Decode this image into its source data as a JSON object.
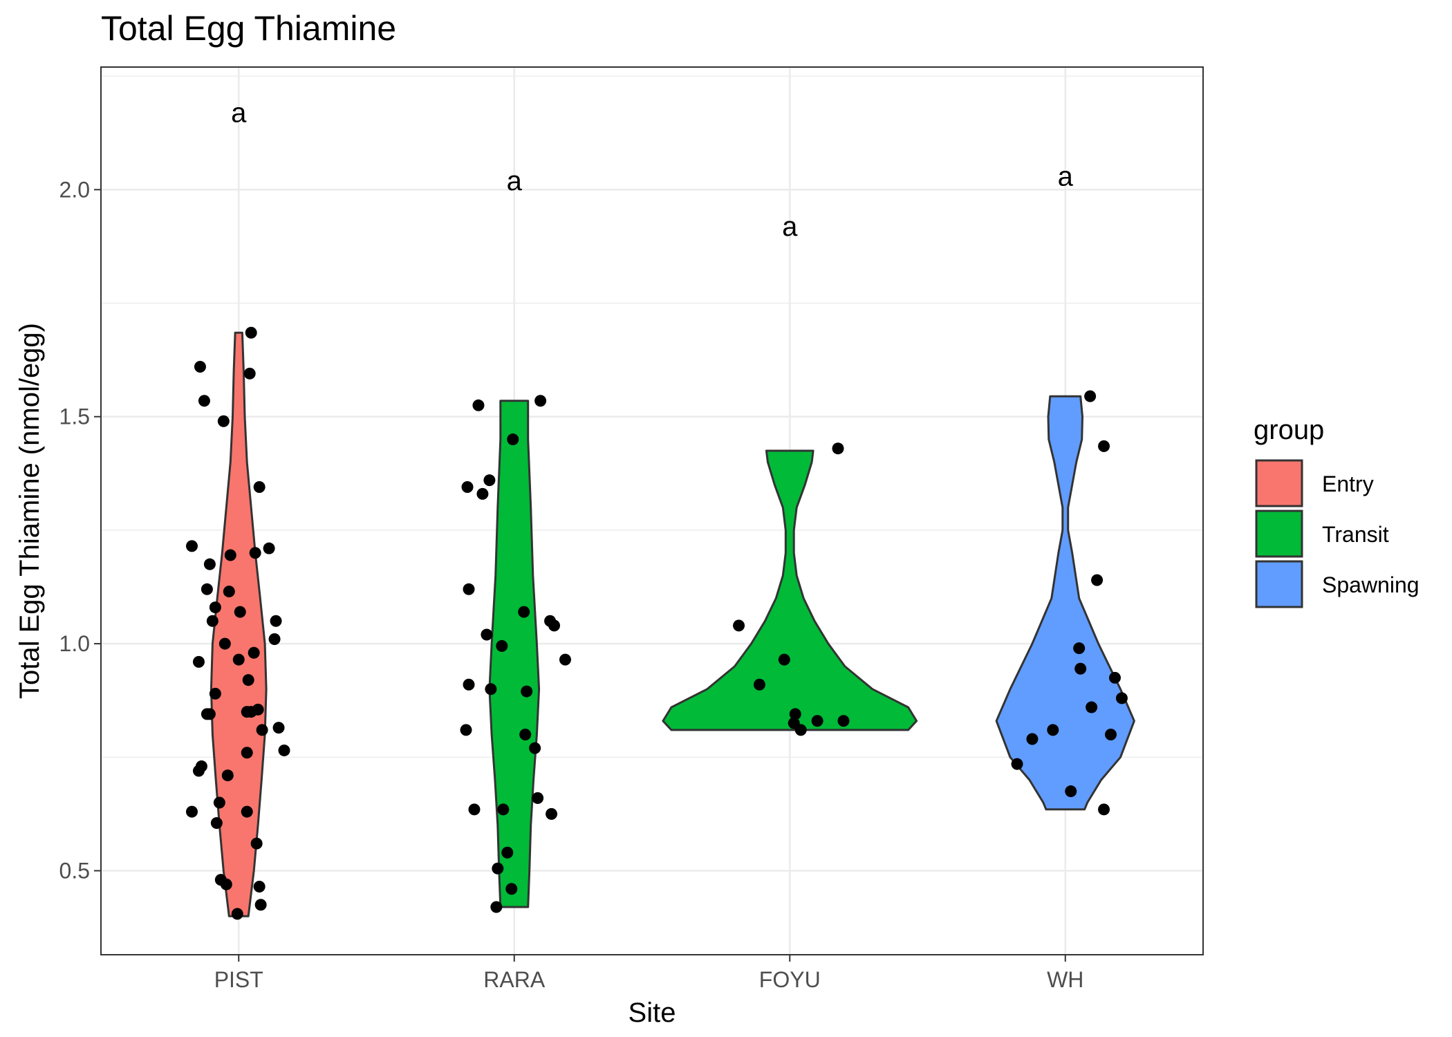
{
  "chart_data": {
    "type": "violin",
    "title": "Total Egg Thiamine",
    "xlabel": "Site",
    "ylabel": "Total Egg Thiamine (nmol/egg)",
    "ylim": [
      0.315,
      2.27
    ],
    "yticks": [
      "0.5",
      "1.0",
      "1.5",
      "2.0"
    ],
    "grid": true,
    "legend": {
      "title": "group",
      "position": "right",
      "entries": [
        {
          "label": "Entry",
          "color": "#F8766D"
        },
        {
          "label": "Transit",
          "color": "#00BA38"
        },
        {
          "label": "Spawning",
          "color": "#619CFF"
        }
      ]
    },
    "categories": [
      "PIST",
      "RARA",
      "FOYU",
      "WH"
    ],
    "sites": [
      {
        "name": "PIST",
        "group": "Entry",
        "letter": "a",
        "letter_y": 2.17,
        "violin": [
          [
            1.685,
            0.013
          ],
          [
            1.6,
            0.018
          ],
          [
            1.5,
            0.022
          ],
          [
            1.4,
            0.03
          ],
          [
            1.3,
            0.045
          ],
          [
            1.2,
            0.06
          ],
          [
            1.1,
            0.078
          ],
          [
            1.0,
            0.095
          ],
          [
            0.9,
            0.1
          ],
          [
            0.8,
            0.095
          ],
          [
            0.7,
            0.083
          ],
          [
            0.6,
            0.07
          ],
          [
            0.5,
            0.055
          ],
          [
            0.45,
            0.045
          ],
          [
            0.4,
            0.035
          ]
        ],
        "points": [
          [
            1.61,
            -0.14
          ],
          [
            1.535,
            -0.125
          ],
          [
            1.49,
            -0.055
          ],
          [
            1.685,
            0.045
          ],
          [
            1.595,
            0.04
          ],
          [
            1.345,
            0.075
          ],
          [
            1.215,
            -0.17
          ],
          [
            1.21,
            0.11
          ],
          [
            1.2,
            0.06
          ],
          [
            1.195,
            -0.03
          ],
          [
            1.175,
            -0.105
          ],
          [
            1.12,
            -0.115
          ],
          [
            1.115,
            -0.035
          ],
          [
            1.08,
            -0.085
          ],
          [
            1.07,
            0.005
          ],
          [
            1.05,
            -0.095
          ],
          [
            1.05,
            0.135
          ],
          [
            1.01,
            0.13
          ],
          [
            1.0,
            -0.05
          ],
          [
            0.98,
            0.055
          ],
          [
            0.965,
            0.0
          ],
          [
            0.96,
            -0.145
          ],
          [
            0.92,
            0.035
          ],
          [
            0.89,
            -0.085
          ],
          [
            0.855,
            0.07
          ],
          [
            0.85,
            0.03
          ],
          [
            0.85,
            0.045
          ],
          [
            0.845,
            -0.105
          ],
          [
            0.845,
            -0.115
          ],
          [
            0.81,
            0.085
          ],
          [
            0.815,
            0.145
          ],
          [
            0.765,
            0.165
          ],
          [
            0.76,
            0.03
          ],
          [
            0.73,
            -0.135
          ],
          [
            0.72,
            -0.145
          ],
          [
            0.71,
            -0.04
          ],
          [
            0.65,
            -0.07
          ],
          [
            0.63,
            -0.17
          ],
          [
            0.63,
            0.03
          ],
          [
            0.605,
            -0.08
          ],
          [
            0.56,
            0.065
          ],
          [
            0.48,
            -0.065
          ],
          [
            0.47,
            -0.045
          ],
          [
            0.465,
            0.075
          ],
          [
            0.425,
            0.08
          ],
          [
            0.405,
            -0.005
          ]
        ]
      },
      {
        "name": "RARA",
        "group": "Transit",
        "letter": "a",
        "letter_y": 2.02,
        "violin": [
          [
            1.535,
            0.05
          ],
          [
            1.45,
            0.05
          ],
          [
            1.3,
            0.06
          ],
          [
            1.15,
            0.068
          ],
          [
            1.0,
            0.082
          ],
          [
            0.9,
            0.09
          ],
          [
            0.8,
            0.082
          ],
          [
            0.7,
            0.07
          ],
          [
            0.6,
            0.06
          ],
          [
            0.5,
            0.055
          ],
          [
            0.42,
            0.05
          ]
        ],
        "points": [
          [
            1.535,
            0.095
          ],
          [
            1.525,
            -0.13
          ],
          [
            1.45,
            -0.005
          ],
          [
            1.36,
            -0.09
          ],
          [
            1.345,
            -0.17
          ],
          [
            1.33,
            -0.115
          ],
          [
            1.12,
            -0.165
          ],
          [
            1.07,
            0.035
          ],
          [
            1.05,
            0.13
          ],
          [
            1.04,
            0.145
          ],
          [
            1.02,
            -0.1
          ],
          [
            0.995,
            -0.045
          ],
          [
            0.965,
            0.185
          ],
          [
            0.91,
            -0.165
          ],
          [
            0.9,
            -0.085
          ],
          [
            0.895,
            0.045
          ],
          [
            0.81,
            -0.175
          ],
          [
            0.8,
            0.04
          ],
          [
            0.77,
            0.075
          ],
          [
            0.66,
            0.085
          ],
          [
            0.635,
            -0.145
          ],
          [
            0.635,
            -0.04
          ],
          [
            0.625,
            0.135
          ],
          [
            0.54,
            -0.025
          ],
          [
            0.505,
            -0.06
          ],
          [
            0.46,
            -0.01
          ],
          [
            0.42,
            -0.065
          ]
        ]
      },
      {
        "name": "FOYU",
        "group": "Transit",
        "letter": "a",
        "letter_y": 1.92,
        "violin": [
          [
            1.425,
            0.085
          ],
          [
            1.4,
            0.08
          ],
          [
            1.35,
            0.055
          ],
          [
            1.3,
            0.025
          ],
          [
            1.25,
            0.015
          ],
          [
            1.2,
            0.015
          ],
          [
            1.15,
            0.025
          ],
          [
            1.1,
            0.05
          ],
          [
            1.05,
            0.09
          ],
          [
            1.0,
            0.14
          ],
          [
            0.95,
            0.2
          ],
          [
            0.9,
            0.3
          ],
          [
            0.86,
            0.43
          ],
          [
            0.83,
            0.46
          ],
          [
            0.81,
            0.43
          ]
        ],
        "points": [
          [
            1.43,
            0.175
          ],
          [
            1.04,
            -0.185
          ],
          [
            0.965,
            -0.02
          ],
          [
            0.91,
            -0.11
          ],
          [
            0.845,
            0.02
          ],
          [
            0.83,
            0.1
          ],
          [
            0.83,
            0.195
          ],
          [
            0.825,
            0.015
          ],
          [
            0.81,
            0.04
          ]
        ]
      },
      {
        "name": "WH",
        "group": "Spawning",
        "letter": "a",
        "letter_y": 2.03,
        "violin": [
          [
            1.545,
            0.055
          ],
          [
            1.5,
            0.062
          ],
          [
            1.45,
            0.06
          ],
          [
            1.4,
            0.04
          ],
          [
            1.3,
            0.01
          ],
          [
            1.25,
            0.01
          ],
          [
            1.2,
            0.025
          ],
          [
            1.1,
            0.05
          ],
          [
            1.0,
            0.12
          ],
          [
            0.9,
            0.2
          ],
          [
            0.83,
            0.25
          ],
          [
            0.75,
            0.2
          ],
          [
            0.7,
            0.13
          ],
          [
            0.65,
            0.08
          ],
          [
            0.635,
            0.07
          ]
        ],
        "points": [
          [
            1.545,
            0.09
          ],
          [
            1.435,
            0.14
          ],
          [
            1.14,
            0.115
          ],
          [
            0.99,
            0.05
          ],
          [
            0.945,
            0.055
          ],
          [
            0.925,
            0.18
          ],
          [
            0.88,
            0.205
          ],
          [
            0.86,
            0.095
          ],
          [
            0.81,
            -0.045
          ],
          [
            0.8,
            0.165
          ],
          [
            0.79,
            -0.12
          ],
          [
            0.735,
            -0.175
          ],
          [
            0.675,
            0.02
          ],
          [
            0.635,
            0.14
          ]
        ]
      }
    ]
  }
}
